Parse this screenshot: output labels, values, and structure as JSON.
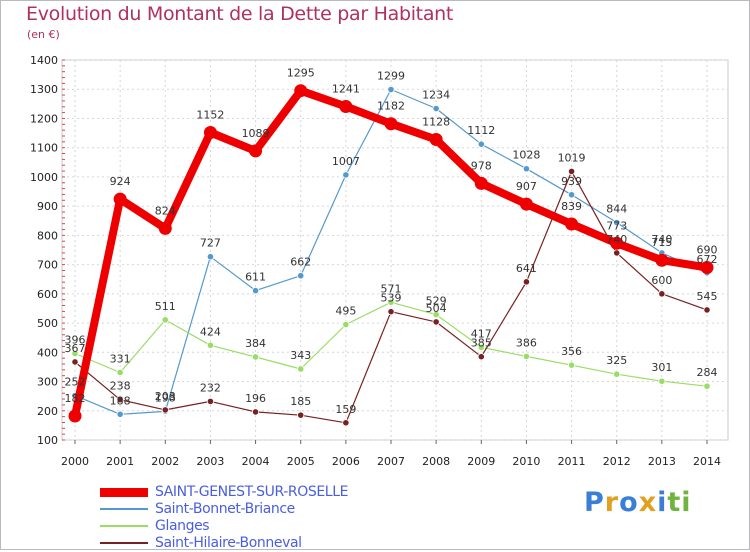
{
  "title": "Evolution du Montant de la Dette par Habitant",
  "subtitle": "(en €)",
  "logo": {
    "text": "Proxiti",
    "colors": [
      "#3a7fd5",
      "#e0a020",
      "#3a7fd5",
      "#e0a020",
      "#3a7fd5",
      "#6fb43f",
      "#6fb43f"
    ]
  },
  "chart_data": {
    "type": "line",
    "title": "Evolution du Montant de la Dette par Habitant",
    "ylabel": "(en €)",
    "x": [
      "2000",
      "2001",
      "2002",
      "2003",
      "2004",
      "2005",
      "2006",
      "2007",
      "2008",
      "2009",
      "2010",
      "2011",
      "2012",
      "2013",
      "2014"
    ],
    "yticks": [
      100,
      200,
      300,
      400,
      500,
      600,
      700,
      800,
      900,
      1000,
      1100,
      1200,
      1300,
      1400
    ],
    "ylim": [
      100,
      1400
    ],
    "grid": true,
    "legend_position": "bottom-left",
    "series": [
      {
        "name": "SAINT-GENEST-SUR-ROSELLE",
        "color": "#ee0000",
        "width": 8,
        "values": [
          182,
          924,
          824,
          1152,
          1089,
          1295,
          1241,
          1182,
          1128,
          978,
          907,
          839,
          773,
          715,
          690
        ]
      },
      {
        "name": "Saint-Bonnet-Briance",
        "color": "#5599cc",
        "width": 1.2,
        "values": [
          252,
          188,
          198,
          727,
          611,
          662,
          1007,
          1299,
          1234,
          1112,
          1028,
          939,
          844,
          740,
          672
        ]
      },
      {
        "name": "Glanges",
        "color": "#99dd66",
        "width": 1.2,
        "values": [
          396,
          331,
          511,
          424,
          384,
          343,
          495,
          571,
          529,
          417,
          386,
          356,
          325,
          301,
          284
        ]
      },
      {
        "name": "Saint-Hilaire-Bonneval",
        "color": "#772222",
        "width": 1.2,
        "values": [
          367,
          238,
          203,
          232,
          196,
          185,
          159,
          539,
          504,
          385,
          641,
          1019,
          740,
          600,
          545
        ]
      }
    ]
  }
}
